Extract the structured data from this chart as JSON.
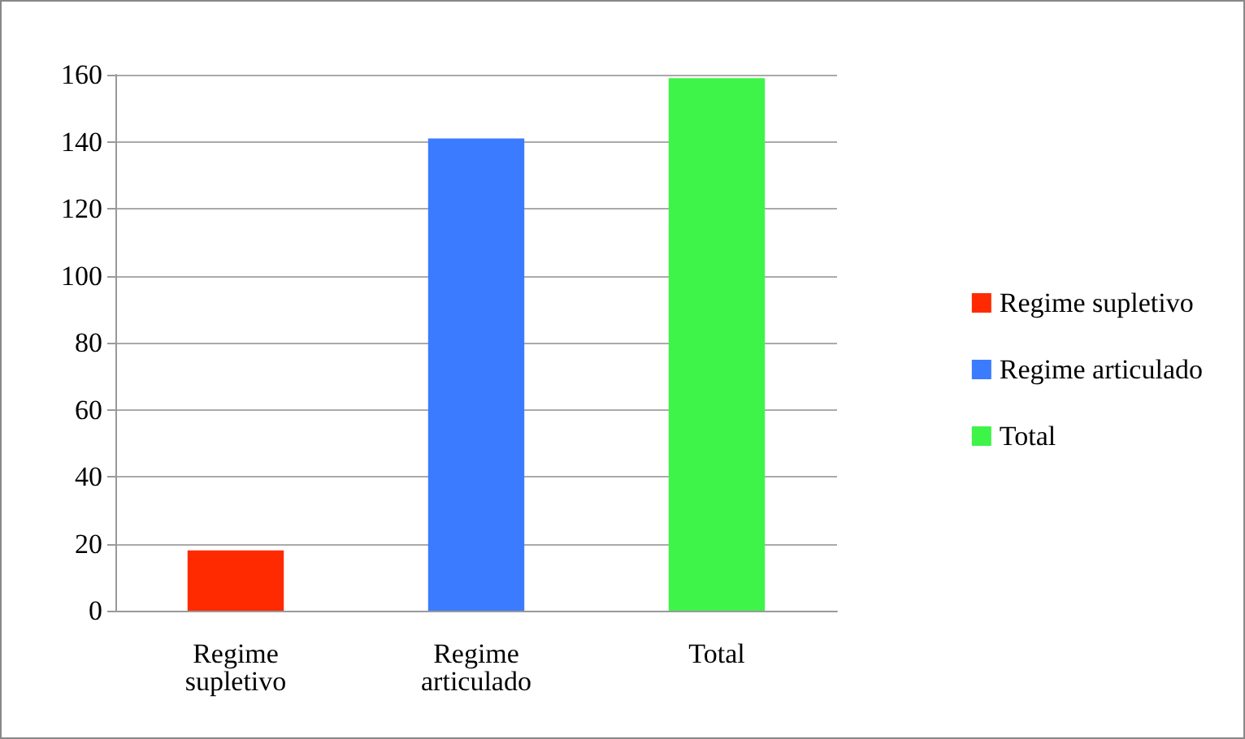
{
  "chart_data": {
    "type": "bar",
    "categories": [
      "Regime supletivo",
      "Regime articulado",
      "Total"
    ],
    "series": [
      {
        "name": "Regime supletivo",
        "color": "#ff2a00",
        "values": [
          18,
          null,
          null
        ]
      },
      {
        "name": "Regime articulado",
        "color": "#3b7bff",
        "values": [
          null,
          141,
          null
        ]
      },
      {
        "name": "Total",
        "color": "#3ef448",
        "values": [
          null,
          null,
          159
        ]
      }
    ],
    "stacked": true,
    "ylim": [
      0,
      160
    ],
    "yticks": [
      0,
      20,
      40,
      60,
      80,
      100,
      120,
      140,
      160
    ],
    "grid": "y",
    "legend": "right"
  }
}
